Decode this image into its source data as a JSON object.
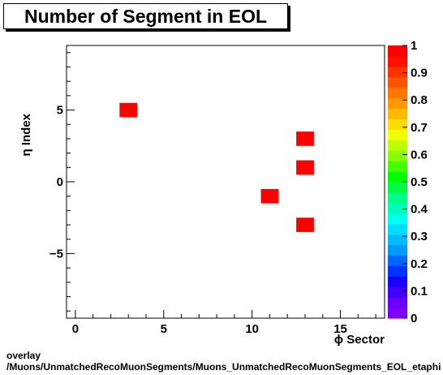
{
  "title": "Number of Segment in EOL",
  "footer": {
    "line1": "overlay",
    "line2": "/Muons/UnmatchedRecoMuonSegments/Muons_UnmatchedRecoMuonSegments_EOL_etaphi"
  },
  "chart_data": {
    "type": "heatmap",
    "title": "Number of Segment in EOL",
    "xlabel": "ϕ Sector",
    "ylabel": "η Index",
    "xlim": [
      -0.5,
      17.5
    ],
    "ylim": [
      -9.5,
      9.5
    ],
    "x_ticks": [
      0,
      5,
      10,
      15
    ],
    "y_ticks": [
      -5,
      0,
      5
    ],
    "cell_size": [
      1,
      1
    ],
    "cells": [
      {
        "x": 3,
        "y": 5,
        "value": 1
      },
      {
        "x": 13,
        "y": 3,
        "value": 1
      },
      {
        "x": 13,
        "y": 1,
        "value": 1
      },
      {
        "x": 11,
        "y": -1,
        "value": 1
      },
      {
        "x": 13,
        "y": -3,
        "value": 1
      }
    ],
    "zlim": [
      0,
      1
    ],
    "colorbar_ticks": [
      "0",
      "0.1",
      "0.2",
      "0.3",
      "0.4",
      "0.5",
      "0.6",
      "0.7",
      "0.8",
      "0.9",
      "1"
    ],
    "colorbar_colors": [
      "#7f00ff",
      "#6a00ff",
      "#4400ff",
      "#1e00ff",
      "#0033ff",
      "#0066ff",
      "#0099ff",
      "#00bbff",
      "#00ddff",
      "#00ffee",
      "#00ffbb",
      "#00ff88",
      "#00ff44",
      "#00ff00",
      "#44ff00",
      "#88ff00",
      "#bbff00",
      "#eeff00",
      "#ffdd00",
      "#ffbb00",
      "#ff9900",
      "#ff7700",
      "#ff5500",
      "#ff3300",
      "#ff1100",
      "#ff0000"
    ],
    "cell_color": "#ff0000"
  }
}
